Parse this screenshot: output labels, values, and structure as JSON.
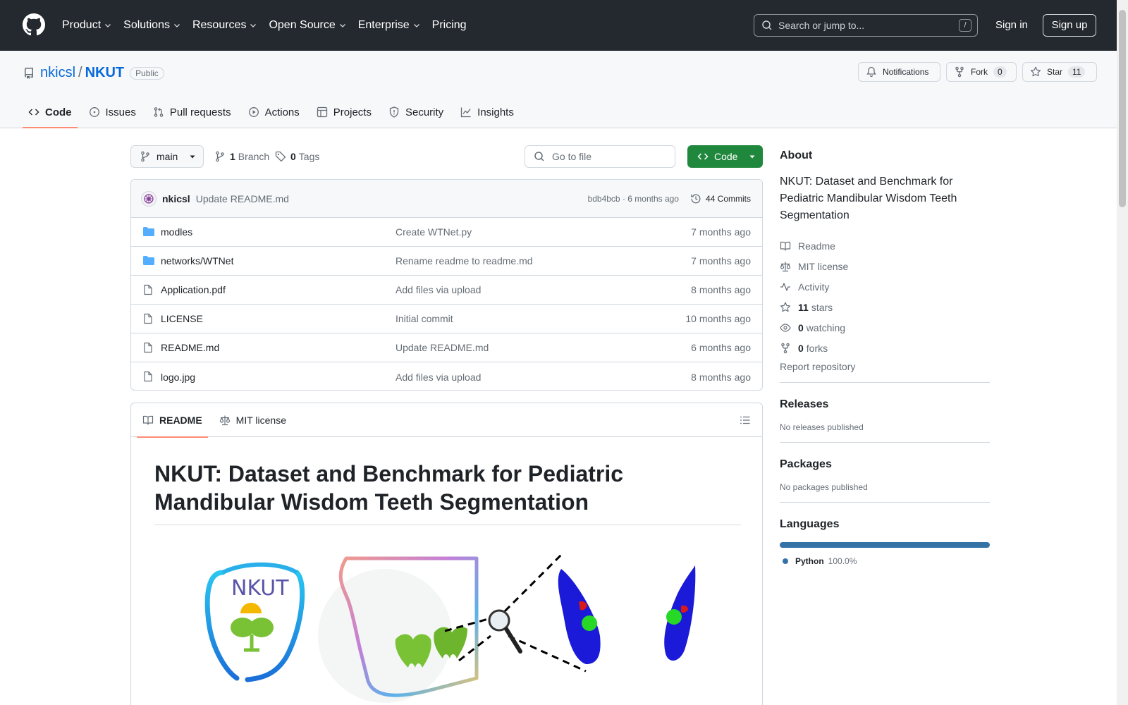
{
  "header": {
    "nav": [
      "Product",
      "Solutions",
      "Resources",
      "Open Source",
      "Enterprise",
      "Pricing"
    ],
    "search_placeholder": "Search or jump to...",
    "search_key": "/",
    "signin": "Sign in",
    "signup": "Sign up"
  },
  "repo": {
    "owner": "nkicsl",
    "separator": "/",
    "name": "NKUT",
    "visibility": "Public",
    "notifications": "Notifications",
    "fork_label": "Fork",
    "fork_count": "0",
    "star_label": "Star",
    "star_count": "11"
  },
  "tabs": [
    "Code",
    "Issues",
    "Pull requests",
    "Actions",
    "Projects",
    "Security",
    "Insights"
  ],
  "toolbar": {
    "branch": "main",
    "branch_count": "1",
    "branch_label": "Branch",
    "tag_count": "0",
    "tag_label": "Tags",
    "goto_file": "Go to file",
    "code_button": "Code"
  },
  "commit": {
    "author": "nkicsl",
    "message": "Update README.md",
    "hash_time": "bdb4bcb · 6 months ago",
    "commits": "44 Commits"
  },
  "files": [
    {
      "name": "modles",
      "type": "dir",
      "message": "Create WTNet.py",
      "date": "7 months ago"
    },
    {
      "name": "networks/WTNet",
      "type": "dir",
      "message": "Rename readme to readme.md",
      "date": "7 months ago"
    },
    {
      "name": "Application.pdf",
      "type": "file",
      "message": "Add files via upload",
      "date": "8 months ago"
    },
    {
      "name": "LICENSE",
      "type": "file",
      "message": "Initial commit",
      "date": "10 months ago"
    },
    {
      "name": "README.md",
      "type": "file",
      "message": "Update README.md",
      "date": "6 months ago"
    },
    {
      "name": "logo.jpg",
      "type": "file",
      "message": "Add files via upload",
      "date": "8 months ago"
    }
  ],
  "readme": {
    "tab_readme": "README",
    "tab_license": "MIT license",
    "heading": "NKUT: Dataset and Benchmark for Pediatric Mandibular Wisdom Teeth Segmentation",
    "logo_text": "NKUT"
  },
  "about": {
    "title": "About",
    "description": "NKUT: Dataset and Benchmark for Pediatric Mandibular Wisdom Teeth Segmentation",
    "readme": "Readme",
    "license": "MIT license",
    "activity": "Activity",
    "stars_count": "11",
    "stars_label": "stars",
    "watching_count": "0",
    "watching_label": "watching",
    "forks_count": "0",
    "forks_label": "forks",
    "report": "Report repository"
  },
  "releases": {
    "title": "Releases",
    "text": "No releases published"
  },
  "packages": {
    "title": "Packages",
    "text": "No packages published"
  },
  "languages": {
    "title": "Languages",
    "name": "Python",
    "percent": "100.0%",
    "color": "#3572a5"
  }
}
